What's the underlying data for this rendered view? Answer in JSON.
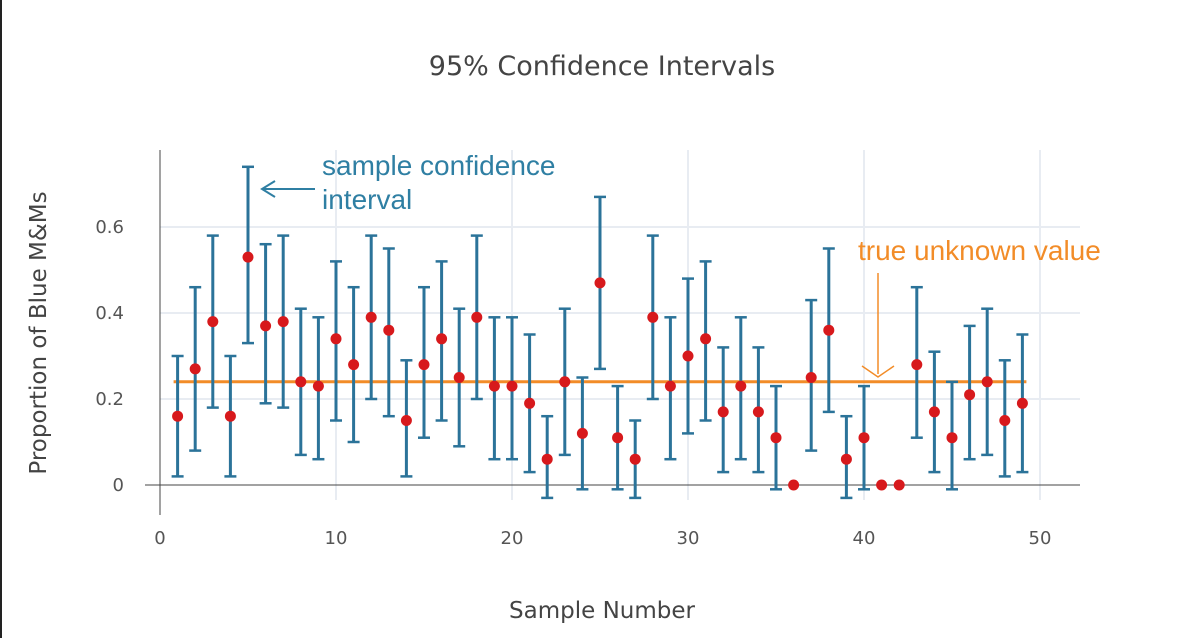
{
  "chart_data": {
    "type": "scatter",
    "title": "95% Confidence Intervals",
    "xlabel": "Sample Number",
    "ylabel": "Proportion of Blue M&Ms",
    "xlim": [
      0,
      52
    ],
    "ylim": [
      -0.04,
      0.78
    ],
    "xticks": [
      0,
      10,
      20,
      30,
      40,
      50
    ],
    "yticks": [
      0,
      0.2,
      0.4,
      0.6
    ],
    "xtick_labels": [
      "0",
      "10",
      "20",
      "30",
      "40",
      "50"
    ],
    "ytick_labels": [
      "0",
      "0.2",
      "0.4",
      "0.6"
    ],
    "grid": true,
    "true_value": 0.24,
    "true_value_range": [
      1,
      49
    ],
    "points": [
      {
        "x": 1,
        "y": 0.16,
        "lo": 0.02,
        "hi": 0.3
      },
      {
        "x": 2,
        "y": 0.27,
        "lo": 0.08,
        "hi": 0.46
      },
      {
        "x": 3,
        "y": 0.38,
        "lo": 0.18,
        "hi": 0.58
      },
      {
        "x": 4,
        "y": 0.16,
        "lo": 0.02,
        "hi": 0.3
      },
      {
        "x": 5,
        "y": 0.53,
        "lo": 0.33,
        "hi": 0.74
      },
      {
        "x": 6,
        "y": 0.37,
        "lo": 0.19,
        "hi": 0.56
      },
      {
        "x": 7,
        "y": 0.38,
        "lo": 0.18,
        "hi": 0.58
      },
      {
        "x": 8,
        "y": 0.24,
        "lo": 0.07,
        "hi": 0.41
      },
      {
        "x": 9,
        "y": 0.23,
        "lo": 0.06,
        "hi": 0.39
      },
      {
        "x": 10,
        "y": 0.34,
        "lo": 0.15,
        "hi": 0.52
      },
      {
        "x": 11,
        "y": 0.28,
        "lo": 0.1,
        "hi": 0.46
      },
      {
        "x": 12,
        "y": 0.39,
        "lo": 0.2,
        "hi": 0.58
      },
      {
        "x": 13,
        "y": 0.36,
        "lo": 0.16,
        "hi": 0.55
      },
      {
        "x": 14,
        "y": 0.15,
        "lo": 0.02,
        "hi": 0.29
      },
      {
        "x": 15,
        "y": 0.28,
        "lo": 0.11,
        "hi": 0.46
      },
      {
        "x": 16,
        "y": 0.34,
        "lo": 0.15,
        "hi": 0.52
      },
      {
        "x": 17,
        "y": 0.25,
        "lo": 0.09,
        "hi": 0.41
      },
      {
        "x": 18,
        "y": 0.39,
        "lo": 0.2,
        "hi": 0.58
      },
      {
        "x": 19,
        "y": 0.23,
        "lo": 0.06,
        "hi": 0.39
      },
      {
        "x": 20,
        "y": 0.23,
        "lo": 0.06,
        "hi": 0.39
      },
      {
        "x": 21,
        "y": 0.19,
        "lo": 0.03,
        "hi": 0.35
      },
      {
        "x": 22,
        "y": 0.06,
        "lo": -0.03,
        "hi": 0.16
      },
      {
        "x": 23,
        "y": 0.24,
        "lo": 0.07,
        "hi": 0.41
      },
      {
        "x": 24,
        "y": 0.12,
        "lo": -0.01,
        "hi": 0.25
      },
      {
        "x": 25,
        "y": 0.47,
        "lo": 0.27,
        "hi": 0.67
      },
      {
        "x": 26,
        "y": 0.11,
        "lo": -0.01,
        "hi": 0.23
      },
      {
        "x": 27,
        "y": 0.06,
        "lo": -0.03,
        "hi": 0.15
      },
      {
        "x": 28,
        "y": 0.39,
        "lo": 0.2,
        "hi": 0.58
      },
      {
        "x": 29,
        "y": 0.23,
        "lo": 0.06,
        "hi": 0.39
      },
      {
        "x": 30,
        "y": 0.3,
        "lo": 0.12,
        "hi": 0.48
      },
      {
        "x": 31,
        "y": 0.34,
        "lo": 0.15,
        "hi": 0.52
      },
      {
        "x": 32,
        "y": 0.17,
        "lo": 0.03,
        "hi": 0.32
      },
      {
        "x": 33,
        "y": 0.23,
        "lo": 0.06,
        "hi": 0.39
      },
      {
        "x": 34,
        "y": 0.17,
        "lo": 0.03,
        "hi": 0.32
      },
      {
        "x": 35,
        "y": 0.11,
        "lo": -0.01,
        "hi": 0.23
      },
      {
        "x": 36,
        "y": 0.0,
        "lo": 0.0,
        "hi": 0.0
      },
      {
        "x": 37,
        "y": 0.25,
        "lo": 0.08,
        "hi": 0.43
      },
      {
        "x": 38,
        "y": 0.36,
        "lo": 0.17,
        "hi": 0.55
      },
      {
        "x": 39,
        "y": 0.06,
        "lo": -0.03,
        "hi": 0.16
      },
      {
        "x": 40,
        "y": 0.11,
        "lo": -0.01,
        "hi": 0.23
      },
      {
        "x": 41,
        "y": 0.0,
        "lo": 0.0,
        "hi": 0.0
      },
      {
        "x": 42,
        "y": 0.0,
        "lo": 0.0,
        "hi": 0.0
      },
      {
        "x": 43,
        "y": 0.28,
        "lo": 0.11,
        "hi": 0.46
      },
      {
        "x": 44,
        "y": 0.17,
        "lo": 0.03,
        "hi": 0.31
      },
      {
        "x": 45,
        "y": 0.11,
        "lo": -0.01,
        "hi": 0.24
      },
      {
        "x": 46,
        "y": 0.21,
        "lo": 0.06,
        "hi": 0.37
      },
      {
        "x": 47,
        "y": 0.24,
        "lo": 0.07,
        "hi": 0.41
      },
      {
        "x": 48,
        "y": 0.15,
        "lo": 0.02,
        "hi": 0.29
      },
      {
        "x": 49,
        "y": 0.19,
        "lo": 0.03,
        "hi": 0.35
      }
    ],
    "annotations": [
      {
        "text_lines": [
          "sample confidence",
          "interval"
        ],
        "target": "error bar of sample 5"
      },
      {
        "text": "true unknown value",
        "target": "true value line"
      }
    ],
    "colors": {
      "point": "#d7191c",
      "error_bar": "#2b7399",
      "true_line": "#f28c28",
      "annotation_ci": "#2f7fa3",
      "annotation_true": "#f28c28",
      "grid": "#e8ecf2",
      "axis": "#444444",
      "text": "#444444"
    }
  }
}
